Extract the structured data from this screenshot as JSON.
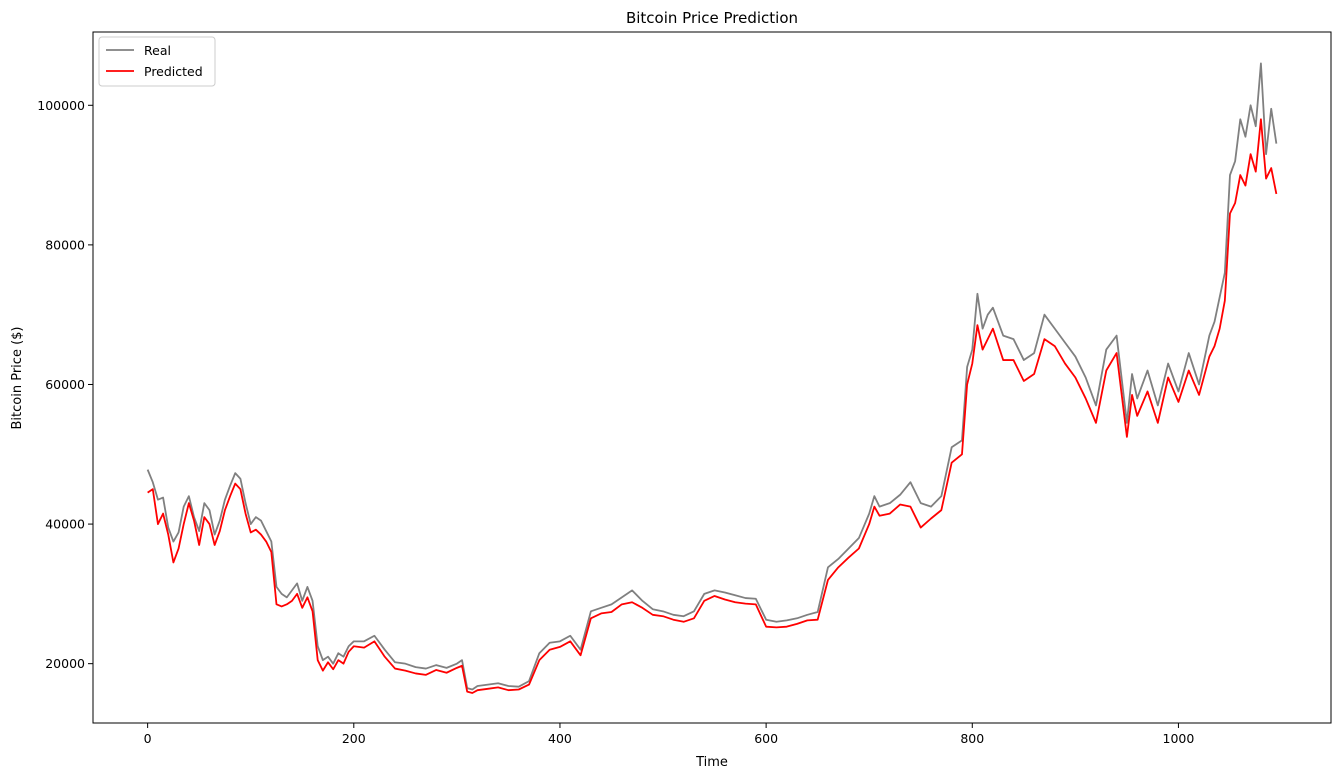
{
  "chart_data": {
    "type": "line",
    "title": "Bitcoin Price Prediction",
    "xlabel": "Time",
    "ylabel": "Bitcoin Price ($)",
    "xlim": [
      -53,
      1148
    ],
    "ylim": [
      11500,
      110500
    ],
    "xticks": [
      0,
      200,
      400,
      600,
      800,
      1000
    ],
    "yticks": [
      20000,
      40000,
      60000,
      80000,
      100000
    ],
    "grid": false,
    "legend": "top-left",
    "series": [
      {
        "name": "Real",
        "color": "#808080",
        "x": [
          0,
          5,
          10,
          15,
          20,
          25,
          30,
          35,
          40,
          45,
          50,
          55,
          60,
          65,
          70,
          75,
          80,
          85,
          90,
          95,
          100,
          105,
          110,
          115,
          120,
          125,
          130,
          135,
          140,
          145,
          150,
          155,
          160,
          165,
          170,
          175,
          180,
          185,
          190,
          195,
          200,
          210,
          220,
          230,
          240,
          250,
          260,
          270,
          280,
          290,
          300,
          305,
          310,
          315,
          320,
          330,
          340,
          350,
          360,
          370,
          380,
          390,
          400,
          410,
          420,
          430,
          440,
          450,
          460,
          470,
          480,
          490,
          500,
          510,
          520,
          530,
          540,
          550,
          560,
          570,
          580,
          590,
          600,
          610,
          620,
          630,
          640,
          650,
          660,
          670,
          680,
          690,
          700,
          705,
          710,
          720,
          730,
          740,
          750,
          760,
          770,
          780,
          790,
          795,
          800,
          805,
          810,
          815,
          820,
          830,
          840,
          850,
          860,
          870,
          880,
          890,
          900,
          910,
          920,
          930,
          940,
          950,
          955,
          960,
          970,
          980,
          990,
          1000,
          1010,
          1020,
          1030,
          1035,
          1040,
          1045,
          1050,
          1055,
          1060,
          1065,
          1070,
          1075,
          1080,
          1085,
          1090,
          1095
        ],
        "values": [
          47800,
          46000,
          43500,
          43800,
          39500,
          37500,
          38800,
          42500,
          44000,
          41000,
          39000,
          43000,
          42000,
          38500,
          40500,
          43500,
          45500,
          47300,
          46500,
          43000,
          40000,
          41000,
          40500,
          39000,
          37500,
          31000,
          30000,
          29500,
          30500,
          31500,
          29000,
          31000,
          29000,
          22500,
          20500,
          21000,
          20000,
          21500,
          21000,
          22500,
          23200,
          23200,
          24000,
          22000,
          20200,
          20000,
          19500,
          19300,
          19800,
          19400,
          20000,
          20500,
          16500,
          16300,
          16800,
          17000,
          17200,
          16800,
          16700,
          17500,
          21500,
          23000,
          23200,
          24000,
          22000,
          27500,
          28000,
          28500,
          29500,
          30500,
          29000,
          27800,
          27500,
          27000,
          26800,
          27500,
          30000,
          30500,
          30200,
          29800,
          29400,
          29300,
          26300,
          26000,
          26200,
          26500,
          27000,
          27400,
          33800,
          35000,
          36500,
          38000,
          41500,
          44000,
          42500,
          43000,
          44200,
          46000,
          43000,
          42500,
          44000,
          51000,
          52000,
          62500,
          65000,
          73000,
          68000,
          70000,
          71000,
          67000,
          66500,
          63500,
          64500,
          70000,
          68000,
          66000,
          64000,
          61000,
          57000,
          65000,
          67000,
          54500,
          61500,
          58000,
          62000,
          57000,
          63000,
          59000,
          64500,
          60000,
          67000,
          69000,
          72500,
          76000,
          90000,
          92000,
          98000,
          95500,
          100000,
          97000,
          106000,
          93000,
          99500,
          94500
        ]
      },
      {
        "name": "Predicted",
        "color": "#ff0000",
        "x": [
          0,
          5,
          10,
          15,
          20,
          25,
          30,
          35,
          40,
          45,
          50,
          55,
          60,
          65,
          70,
          75,
          80,
          85,
          90,
          95,
          100,
          105,
          110,
          115,
          120,
          125,
          130,
          135,
          140,
          145,
          150,
          155,
          160,
          165,
          170,
          175,
          180,
          185,
          190,
          195,
          200,
          210,
          220,
          230,
          240,
          250,
          260,
          270,
          280,
          290,
          300,
          305,
          310,
          315,
          320,
          330,
          340,
          350,
          360,
          370,
          380,
          390,
          400,
          410,
          420,
          430,
          440,
          450,
          460,
          470,
          480,
          490,
          500,
          510,
          520,
          530,
          540,
          550,
          560,
          570,
          580,
          590,
          600,
          610,
          620,
          630,
          640,
          650,
          660,
          670,
          680,
          690,
          700,
          705,
          710,
          720,
          730,
          740,
          750,
          760,
          770,
          780,
          790,
          795,
          800,
          805,
          810,
          815,
          820,
          830,
          840,
          850,
          860,
          870,
          880,
          890,
          900,
          910,
          920,
          930,
          940,
          950,
          955,
          960,
          970,
          980,
          990,
          1000,
          1010,
          1020,
          1030,
          1035,
          1040,
          1045,
          1050,
          1055,
          1060,
          1065,
          1070,
          1075,
          1080,
          1085,
          1090,
          1095
        ],
        "values": [
          44500,
          45000,
          40000,
          41500,
          38500,
          34500,
          36500,
          40000,
          43000,
          40500,
          37000,
          41000,
          40000,
          37000,
          39000,
          42000,
          44000,
          45800,
          45000,
          41500,
          38800,
          39200,
          38500,
          37500,
          36000,
          28500,
          28200,
          28500,
          29000,
          30000,
          28000,
          29500,
          27500,
          20500,
          19000,
          20200,
          19200,
          20500,
          20000,
          21700,
          22500,
          22300,
          23200,
          21000,
          19300,
          19000,
          18600,
          18400,
          19100,
          18700,
          19400,
          19700,
          16000,
          15800,
          16200,
          16400,
          16600,
          16200,
          16300,
          17000,
          20500,
          22000,
          22400,
          23200,
          21200,
          26500,
          27200,
          27400,
          28500,
          28800,
          28000,
          27000,
          26800,
          26300,
          26000,
          26500,
          29000,
          29700,
          29200,
          28800,
          28600,
          28500,
          25300,
          25200,
          25300,
          25700,
          26200,
          26300,
          32000,
          33800,
          35200,
          36500,
          40000,
          42500,
          41200,
          41500,
          42800,
          42500,
          39500,
          40800,
          42000,
          48800,
          50000,
          60000,
          63000,
          68500,
          65000,
          66500,
          68000,
          63500,
          63500,
          60500,
          61500,
          66500,
          65500,
          63000,
          61000,
          58000,
          54500,
          62000,
          64500,
          52500,
          58500,
          55500,
          59000,
          54500,
          61000,
          57500,
          62000,
          58500,
          64000,
          65500,
          68000,
          72000,
          84500,
          86000,
          90000,
          88500,
          93000,
          90500,
          98000,
          89500,
          91000,
          87300
        ]
      }
    ]
  }
}
